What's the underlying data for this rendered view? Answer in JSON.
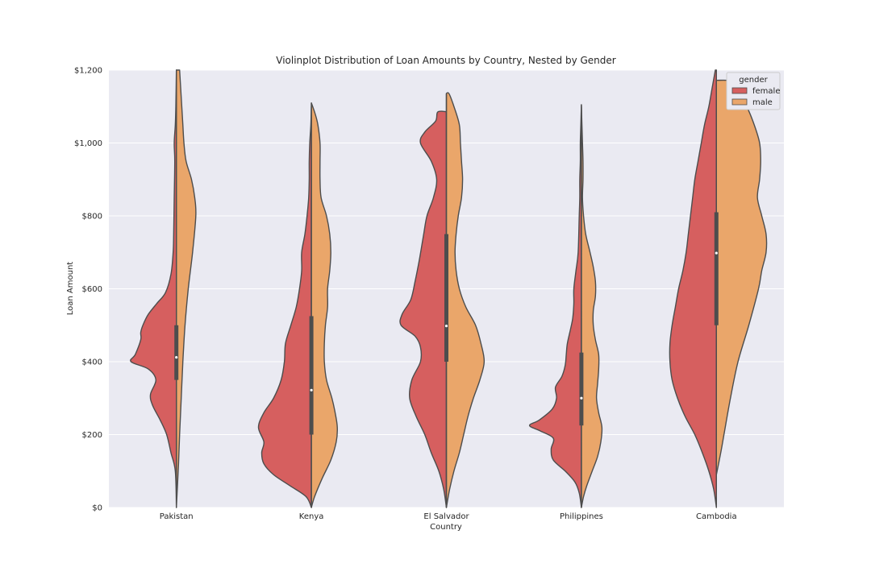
{
  "chart_data": {
    "type": "violin",
    "title": "Violinplot Distribution of Loan Amounts by Country, Nested by Gender",
    "xlabel": "Country",
    "ylabel": "Loan Amount",
    "ylim": [
      0,
      1200
    ],
    "y_ticks": [
      0,
      200,
      400,
      600,
      800,
      1000,
      1200
    ],
    "y_tick_labels": [
      "$0",
      "$200",
      "$400",
      "$600",
      "$800",
      "$1,000",
      "$1,200"
    ],
    "categories": [
      "Pakistan",
      "Kenya",
      "El Salvador",
      "Philippines",
      "Cambodia"
    ],
    "grid": true,
    "legend": {
      "title": "gender",
      "placement": "top-right"
    },
    "series": [
      {
        "name": "female",
        "color": "#d65f5f",
        "side": "left"
      },
      {
        "name": "male",
        "color": "#eaa66a",
        "side": "right"
      }
    ],
    "violins": [
      {
        "category": "Pakistan",
        "median": 412,
        "q1": 350,
        "q3": 500,
        "whisker_low": 0,
        "whisker_high": 1200,
        "female": [
          [
            0,
            0
          ],
          [
            100,
            0.02
          ],
          [
            150,
            0.1
          ],
          [
            200,
            0.18
          ],
          [
            240,
            0.3
          ],
          [
            280,
            0.44
          ],
          [
            310,
            0.48
          ],
          [
            350,
            0.38
          ],
          [
            380,
            0.52
          ],
          [
            400,
            0.84
          ],
          [
            420,
            0.76
          ],
          [
            460,
            0.66
          ],
          [
            480,
            0.66
          ],
          [
            500,
            0.62
          ],
          [
            530,
            0.52
          ],
          [
            560,
            0.36
          ],
          [
            590,
            0.2
          ],
          [
            640,
            0.1
          ],
          [
            700,
            0.06
          ],
          [
            750,
            0.05
          ],
          [
            850,
            0.04
          ],
          [
            950,
            0.03
          ],
          [
            1000,
            0.04
          ],
          [
            1050,
            0.02
          ],
          [
            1100,
            0.01
          ],
          [
            1200,
            0
          ]
        ],
        "male": [
          [
            0,
            0
          ],
          [
            60,
            0.02
          ],
          [
            120,
            0.04
          ],
          [
            200,
            0.06
          ],
          [
            300,
            0.09
          ],
          [
            400,
            0.12
          ],
          [
            500,
            0.16
          ],
          [
            600,
            0.22
          ],
          [
            700,
            0.3
          ],
          [
            800,
            0.36
          ],
          [
            850,
            0.34
          ],
          [
            900,
            0.28
          ],
          [
            950,
            0.18
          ],
          [
            1000,
            0.14
          ],
          [
            1050,
            0.12
          ],
          [
            1100,
            0.1
          ],
          [
            1150,
            0.08
          ],
          [
            1200,
            0.06
          ]
        ]
      },
      {
        "category": "Kenya",
        "median": 322,
        "q1": 200,
        "q3": 525,
        "whisker_low": 0,
        "whisker_high": 1110,
        "female": [
          [
            0,
            0
          ],
          [
            30,
            0.1
          ],
          [
            60,
            0.4
          ],
          [
            90,
            0.7
          ],
          [
            120,
            0.88
          ],
          [
            150,
            0.92
          ],
          [
            180,
            0.88
          ],
          [
            220,
            0.98
          ],
          [
            260,
            0.88
          ],
          [
            300,
            0.7
          ],
          [
            350,
            0.56
          ],
          [
            400,
            0.5
          ],
          [
            450,
            0.48
          ],
          [
            500,
            0.38
          ],
          [
            550,
            0.28
          ],
          [
            600,
            0.22
          ],
          [
            650,
            0.18
          ],
          [
            700,
            0.18
          ],
          [
            750,
            0.12
          ],
          [
            800,
            0.08
          ],
          [
            850,
            0.05
          ],
          [
            900,
            0.04
          ],
          [
            950,
            0.04
          ],
          [
            1000,
            0.03
          ],
          [
            1050,
            0.01
          ],
          [
            1100,
            0
          ]
        ],
        "male": [
          [
            0,
            0
          ],
          [
            30,
            0.06
          ],
          [
            80,
            0.2
          ],
          [
            130,
            0.36
          ],
          [
            180,
            0.46
          ],
          [
            220,
            0.48
          ],
          [
            260,
            0.44
          ],
          [
            300,
            0.38
          ],
          [
            350,
            0.28
          ],
          [
            400,
            0.24
          ],
          [
            450,
            0.24
          ],
          [
            500,
            0.26
          ],
          [
            550,
            0.3
          ],
          [
            600,
            0.3
          ],
          [
            650,
            0.34
          ],
          [
            700,
            0.36
          ],
          [
            750,
            0.34
          ],
          [
            800,
            0.28
          ],
          [
            850,
            0.18
          ],
          [
            900,
            0.16
          ],
          [
            950,
            0.16
          ],
          [
            1000,
            0.16
          ],
          [
            1050,
            0.12
          ],
          [
            1080,
            0.07
          ],
          [
            1110,
            0
          ]
        ]
      },
      {
        "category": "El Salvador",
        "median": 498,
        "q1": 400,
        "q3": 750,
        "whisker_low": 0,
        "whisker_high": 1135,
        "female": [
          [
            0,
            0
          ],
          [
            50,
            0.05
          ],
          [
            100,
            0.14
          ],
          [
            150,
            0.28
          ],
          [
            200,
            0.4
          ],
          [
            250,
            0.56
          ],
          [
            300,
            0.68
          ],
          [
            350,
            0.64
          ],
          [
            400,
            0.48
          ],
          [
            440,
            0.48
          ],
          [
            470,
            0.58
          ],
          [
            500,
            0.84
          ],
          [
            530,
            0.82
          ],
          [
            570,
            0.66
          ],
          [
            620,
            0.58
          ],
          [
            680,
            0.5
          ],
          [
            750,
            0.42
          ],
          [
            800,
            0.36
          ],
          [
            850,
            0.24
          ],
          [
            900,
            0.18
          ],
          [
            950,
            0.28
          ],
          [
            1000,
            0.48
          ],
          [
            1030,
            0.4
          ],
          [
            1060,
            0.2
          ],
          [
            1085,
            0.16
          ],
          [
            1086,
            0
          ]
        ],
        "male": [
          [
            0,
            0
          ],
          [
            50,
            0.06
          ],
          [
            100,
            0.14
          ],
          [
            150,
            0.24
          ],
          [
            200,
            0.32
          ],
          [
            250,
            0.4
          ],
          [
            300,
            0.5
          ],
          [
            350,
            0.62
          ],
          [
            400,
            0.7
          ],
          [
            450,
            0.64
          ],
          [
            500,
            0.54
          ],
          [
            550,
            0.36
          ],
          [
            600,
            0.24
          ],
          [
            650,
            0.18
          ],
          [
            700,
            0.16
          ],
          [
            750,
            0.18
          ],
          [
            800,
            0.22
          ],
          [
            850,
            0.28
          ],
          [
            900,
            0.3
          ],
          [
            950,
            0.28
          ],
          [
            1000,
            0.26
          ],
          [
            1050,
            0.24
          ],
          [
            1100,
            0.14
          ],
          [
            1135,
            0.05
          ],
          [
            1136,
            0
          ]
        ]
      },
      {
        "category": "Philippines",
        "median": 300,
        "q1": 225,
        "q3": 425,
        "whisker_low": 0,
        "whisker_high": 1105,
        "female": [
          [
            0,
            0
          ],
          [
            40,
            0.04
          ],
          [
            70,
            0.12
          ],
          [
            100,
            0.3
          ],
          [
            130,
            0.52
          ],
          [
            160,
            0.56
          ],
          [
            190,
            0.52
          ],
          [
            210,
            0.76
          ],
          [
            225,
            0.96
          ],
          [
            240,
            0.78
          ],
          [
            270,
            0.54
          ],
          [
            300,
            0.46
          ],
          [
            330,
            0.48
          ],
          [
            360,
            0.36
          ],
          [
            390,
            0.3
          ],
          [
            420,
            0.28
          ],
          [
            450,
            0.26
          ],
          [
            490,
            0.2
          ],
          [
            520,
            0.16
          ],
          [
            560,
            0.14
          ],
          [
            600,
            0.14
          ],
          [
            650,
            0.1
          ],
          [
            700,
            0.06
          ],
          [
            800,
            0.04
          ],
          [
            850,
            0.03
          ],
          [
            900,
            0.03
          ],
          [
            950,
            0.02
          ],
          [
            1000,
            0.02
          ],
          [
            1050,
            0.01
          ],
          [
            1105,
            0
          ]
        ],
        "male": [
          [
            0,
            0
          ],
          [
            30,
            0.04
          ],
          [
            60,
            0.1
          ],
          [
            100,
            0.2
          ],
          [
            140,
            0.3
          ],
          [
            180,
            0.36
          ],
          [
            220,
            0.38
          ],
          [
            260,
            0.32
          ],
          [
            300,
            0.28
          ],
          [
            340,
            0.3
          ],
          [
            380,
            0.32
          ],
          [
            420,
            0.32
          ],
          [
            460,
            0.26
          ],
          [
            500,
            0.22
          ],
          [
            540,
            0.22
          ],
          [
            580,
            0.26
          ],
          [
            620,
            0.26
          ],
          [
            660,
            0.22
          ],
          [
            700,
            0.16
          ],
          [
            750,
            0.08
          ],
          [
            800,
            0.04
          ],
          [
            850,
            0.02
          ],
          [
            900,
            0.03
          ],
          [
            950,
            0.03
          ],
          [
            1000,
            0.02
          ],
          [
            1050,
            0.01
          ],
          [
            1100,
            0
          ]
        ]
      },
      {
        "category": "Cambodia",
        "median": 698,
        "q1": 500,
        "q3": 810,
        "whisker_low": 0,
        "whisker_high": 1200,
        "female": [
          [
            0,
            0
          ],
          [
            50,
            0.05
          ],
          [
            100,
            0.14
          ],
          [
            150,
            0.26
          ],
          [
            200,
            0.4
          ],
          [
            250,
            0.58
          ],
          [
            300,
            0.72
          ],
          [
            350,
            0.82
          ],
          [
            400,
            0.86
          ],
          [
            450,
            0.86
          ],
          [
            500,
            0.82
          ],
          [
            550,
            0.76
          ],
          [
            600,
            0.7
          ],
          [
            650,
            0.62
          ],
          [
            700,
            0.56
          ],
          [
            750,
            0.52
          ],
          [
            800,
            0.48
          ],
          [
            850,
            0.44
          ],
          [
            900,
            0.4
          ],
          [
            950,
            0.34
          ],
          [
            1000,
            0.28
          ],
          [
            1050,
            0.22
          ],
          [
            1100,
            0.14
          ],
          [
            1150,
            0.08
          ],
          [
            1200,
            0.02
          ]
        ],
        "male": [
          [
            90,
            0
          ],
          [
            150,
            0.08
          ],
          [
            200,
            0.14
          ],
          [
            300,
            0.26
          ],
          [
            400,
            0.4
          ],
          [
            500,
            0.6
          ],
          [
            600,
            0.78
          ],
          [
            650,
            0.84
          ],
          [
            700,
            0.92
          ],
          [
            750,
            0.92
          ],
          [
            800,
            0.84
          ],
          [
            850,
            0.76
          ],
          [
            900,
            0.8
          ],
          [
            950,
            0.82
          ],
          [
            1000,
            0.8
          ],
          [
            1050,
            0.7
          ],
          [
            1100,
            0.56
          ],
          [
            1150,
            0.34
          ],
          [
            1170,
            0.3
          ],
          [
            1172,
            0
          ]
        ]
      }
    ]
  }
}
